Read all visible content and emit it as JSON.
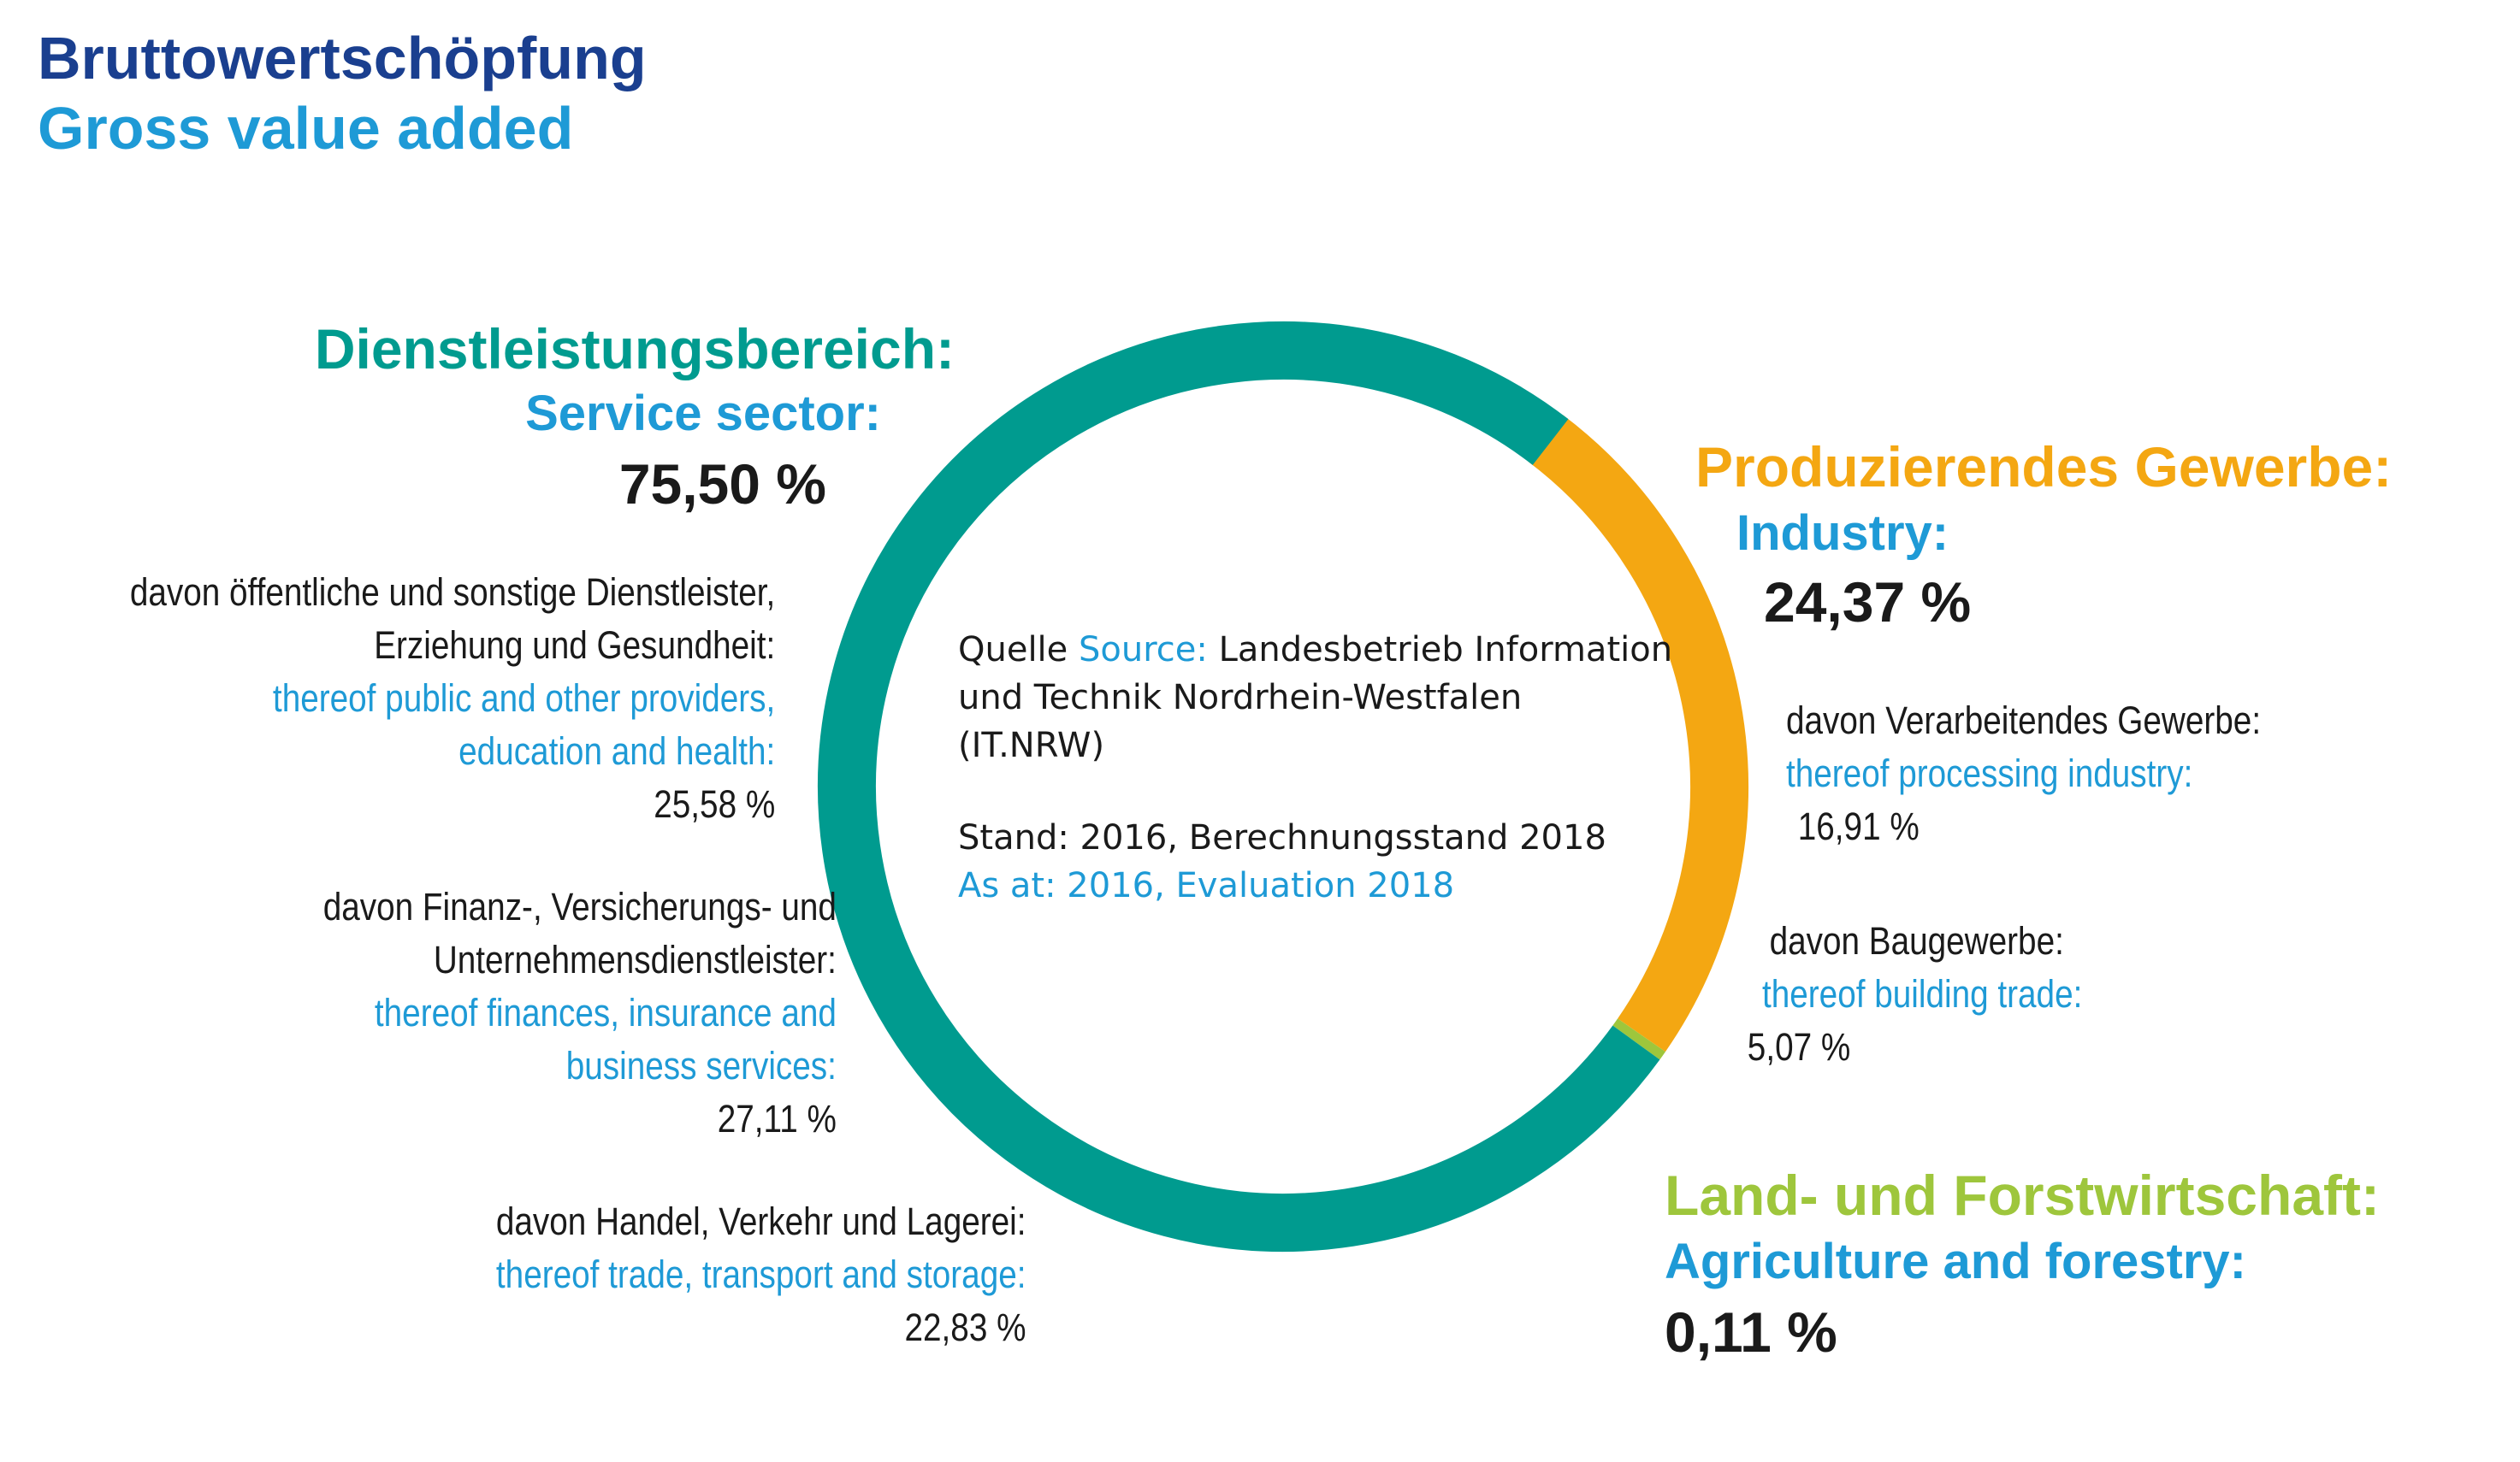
{
  "title_de": "Bruttowertschöpfung",
  "title_en": "Gross value added",
  "colors": {
    "service": "#009b8f",
    "industry": "#f4a712",
    "agriculture": "#9ec63c",
    "title_dark": "#1a3f8f",
    "title_light": "#1e9ad6"
  },
  "chart_data": {
    "type": "pie",
    "categories": [
      "Dienstleistungsbereich",
      "Produzierendes Gewerbe",
      "Land- und Forstwirtschaft"
    ],
    "values": [
      75.5,
      24.37,
      0.11
    ]
  },
  "service": {
    "label_de": "Dienstleistungsbereich:",
    "label_en": "Service sector:",
    "value": "75,50 %",
    "sub1": {
      "de1": "davon öffentliche und sonstige Dienstleister,",
      "de2": "Erziehung und Gesundheit:",
      "en1": "thereof public and other providers,",
      "en2": "education and health:",
      "value": "25,58 %"
    },
    "sub2": {
      "de1": "davon Finanz-, Versicherungs- und",
      "de2": "Unternehmensdienstleister:",
      "en1": "thereof finances, insurance and",
      "en2": "business services:",
      "value": "27,11 %"
    },
    "sub3": {
      "de1": "davon Handel, Verkehr und Lagerei:",
      "en1": "thereof trade, transport and storage:",
      "value": "22,83 %"
    }
  },
  "industry": {
    "label_de": "Produzierendes Gewerbe:",
    "label_en": "Industry:",
    "value": "24,37 %",
    "sub1": {
      "de1": "davon Verarbeitendes Gewerbe:",
      "en1": "thereof processing industry:",
      "value": "16,91 %"
    },
    "sub2": {
      "de1": "davon Baugewerbe:",
      "en1": "thereof building trade:",
      "value": "5,07 %"
    }
  },
  "agriculture": {
    "label_de": "Land- und Forstwirtschaft:",
    "label_en": "Agriculture and forestry:",
    "value": "0,11 %"
  },
  "source": {
    "quelle": "Quelle",
    "source_label": "Source:",
    "line1": "Landesbetrieb Information",
    "line2": "und Technik Nordrhein-Westfalen",
    "line3": "(IT.NRW)",
    "stand_de": "Stand: 2016, Berechnungsstand 2018",
    "stand_en": "As at: 2016, Evaluation 2018"
  }
}
